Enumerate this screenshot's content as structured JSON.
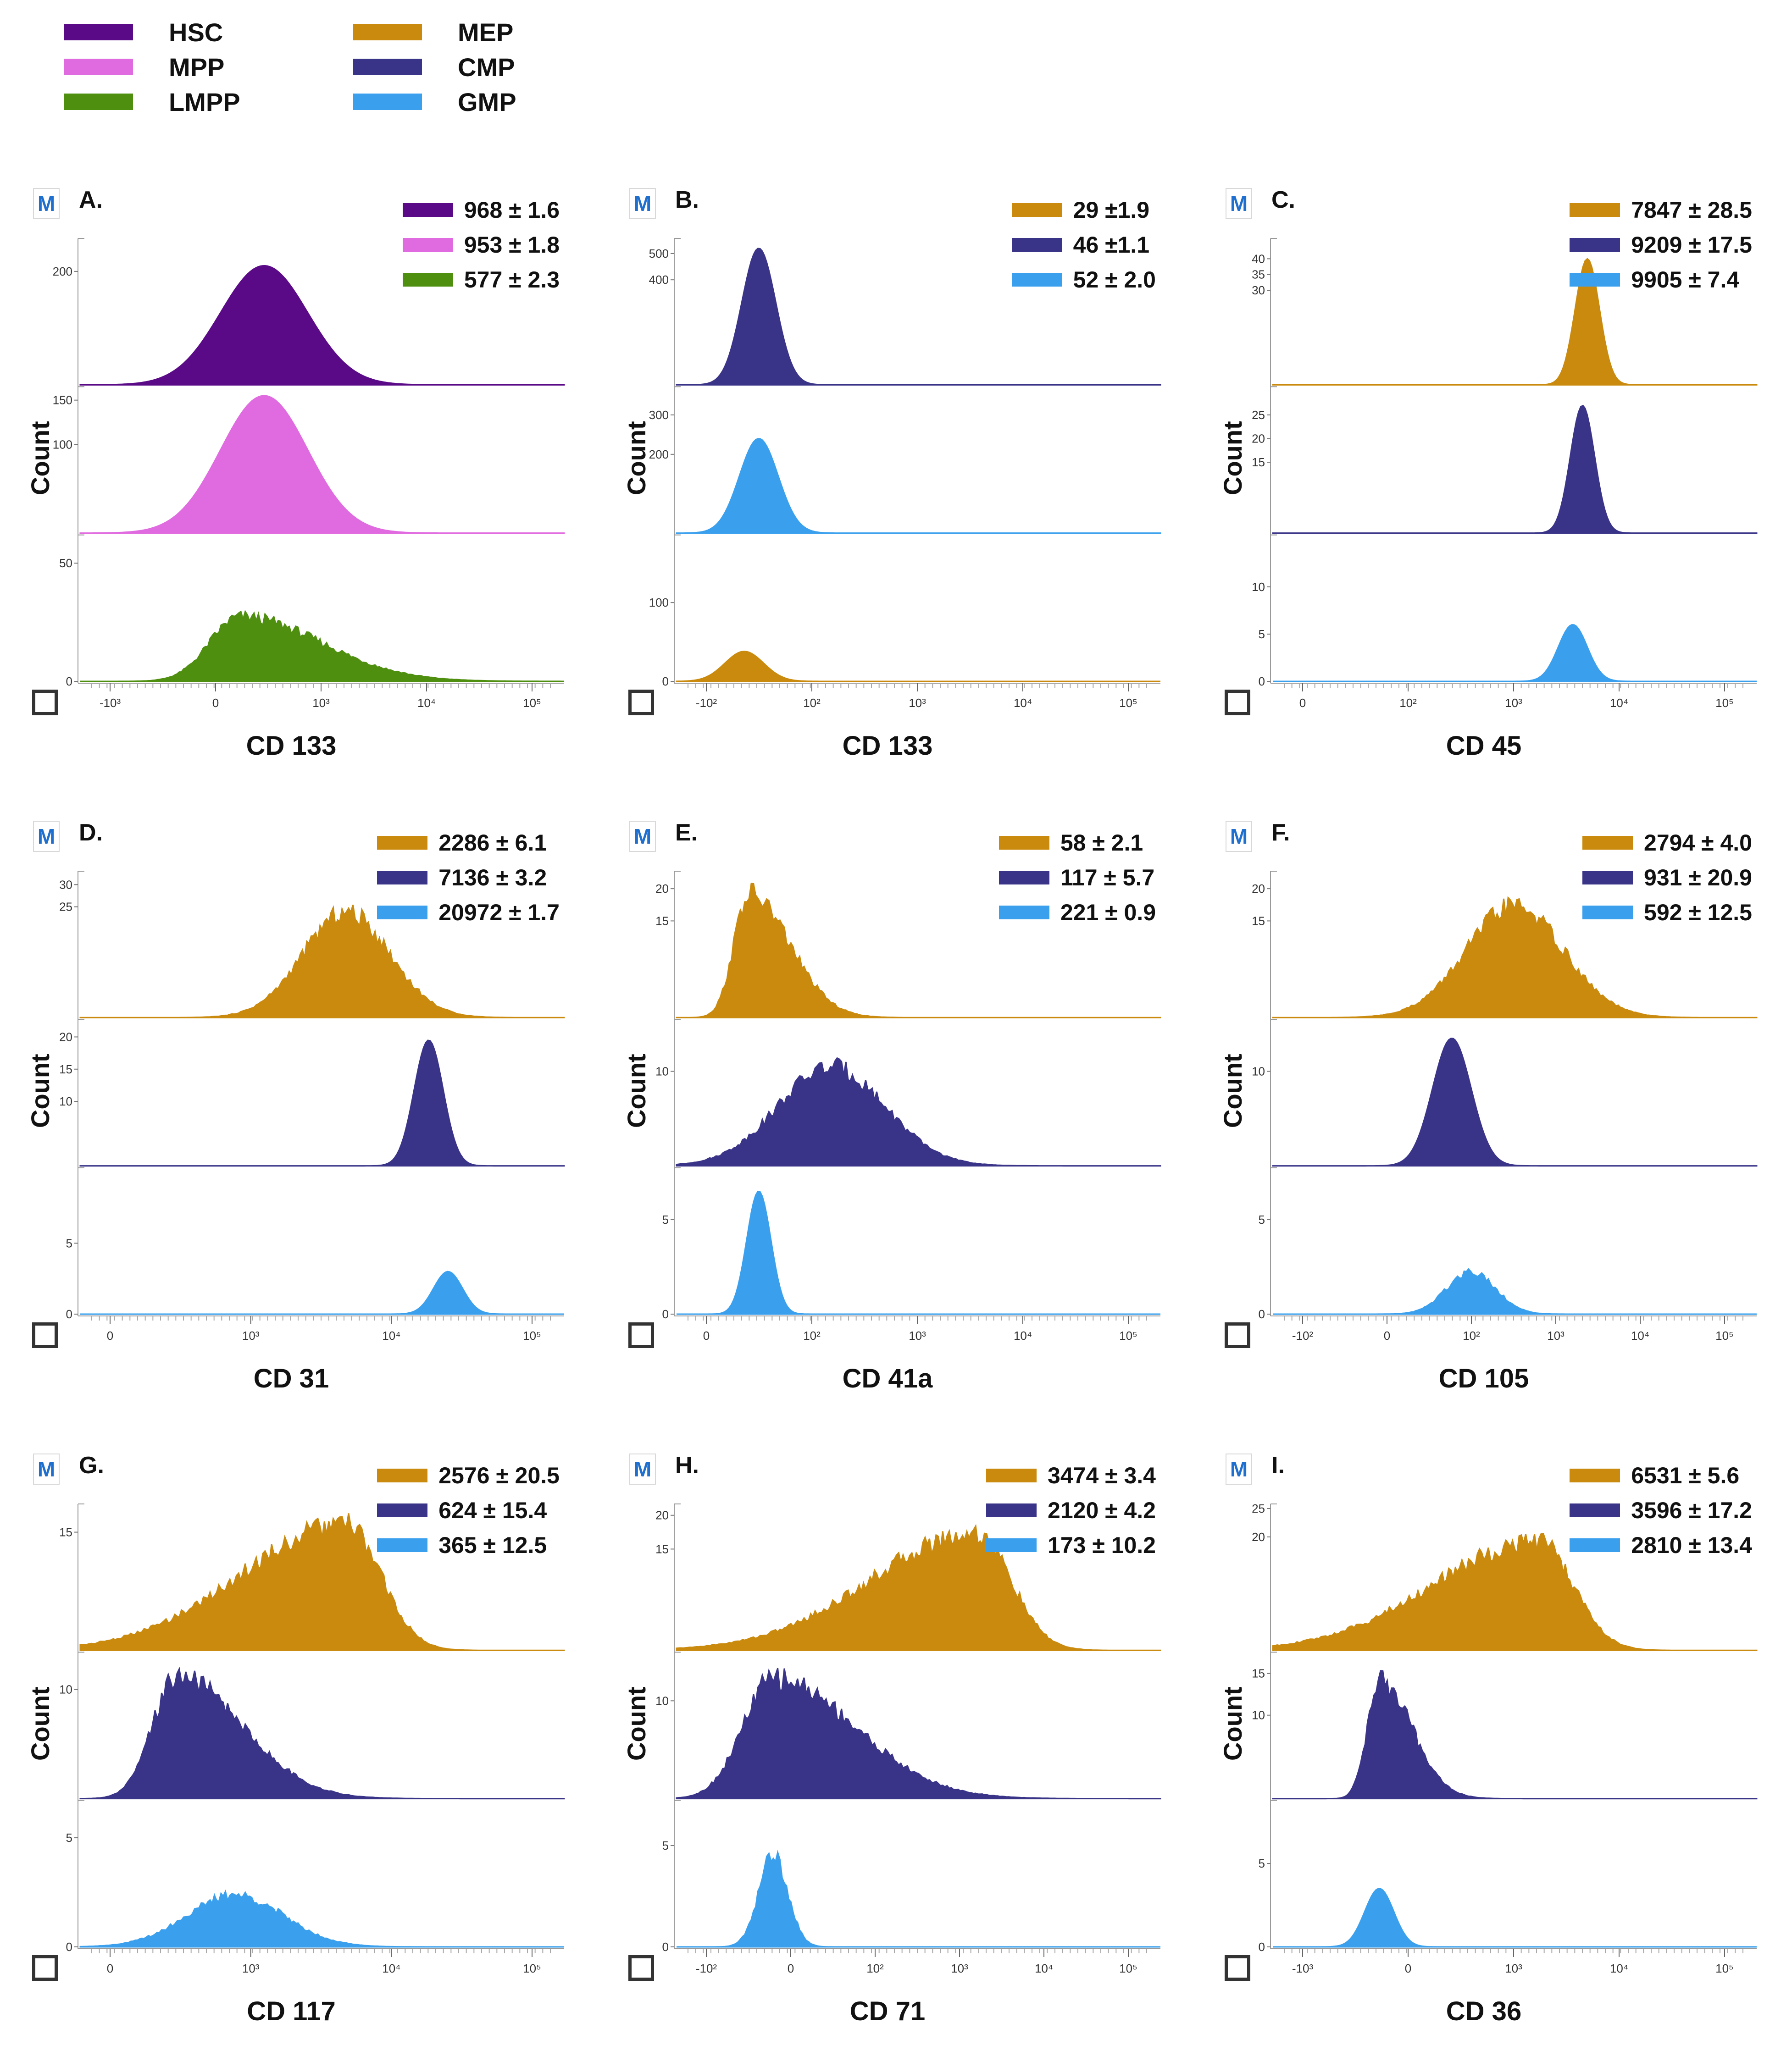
{
  "colors": {
    "HSC": "#5b0a87",
    "MPP": "#e06ae0",
    "LMPP": "#4f8f10",
    "MEP": "#c98a0e",
    "CMP": "#3a3488",
    "GMP": "#3aa0ee"
  },
  "legend": [
    {
      "key": "HSC",
      "label": "HSC"
    },
    {
      "key": "MPP",
      "label": "MPP"
    },
    {
      "key": "LMPP",
      "label": "LMPP"
    },
    {
      "key": "MEP",
      "label": "MEP"
    },
    {
      "key": "CMP",
      "label": "CMP"
    },
    {
      "key": "GMP",
      "label": "GMP"
    }
  ],
  "chart_data": [
    {
      "id": "A",
      "letter": "A.",
      "type": "area",
      "xlabel": "CD 133",
      "ylabel": "Count",
      "icon": "M",
      "x_ticks": [
        "-10³",
        "0",
        "10³",
        "10⁴",
        "10⁵"
      ],
      "stats": [
        {
          "key": "HSC",
          "text": "968 ± 1.6"
        },
        {
          "key": "MPP",
          "text": "953 ± 1.8"
        },
        {
          "key": "LMPP",
          "text": "577 ± 2.3"
        }
      ],
      "series": [
        {
          "key": "HSC",
          "ymax": 250,
          "y_ticks": [
            "200"
          ],
          "peak_center": 0.38,
          "peak_width": 0.09,
          "peak_height": 210,
          "shape": "smooth"
        },
        {
          "key": "MPP",
          "ymax": 160,
          "y_ticks": [
            "100",
            "150"
          ],
          "peak_center": 0.38,
          "peak_width": 0.09,
          "peak_height": 155,
          "shape": "smooth"
        },
        {
          "key": "LMPP",
          "ymax": 60,
          "y_ticks": [
            "0",
            "50"
          ],
          "peak_center": 0.33,
          "peak_width": 0.1,
          "peak_height": 30,
          "shape": "skew"
        }
      ]
    },
    {
      "id": "B",
      "letter": "B.",
      "type": "area",
      "xlabel": "CD 133",
      "ylabel": "Count",
      "icon": "M",
      "x_ticks": [
        "-10²",
        "10²",
        "10³",
        "10⁴",
        "10⁵"
      ],
      "stats": [
        {
          "key": "MEP",
          "text": "29 ±1.9"
        },
        {
          "key": "CMP",
          "text": "46 ±1.1"
        },
        {
          "key": "GMP",
          "text": "52 ± 2.0"
        }
      ],
      "series": [
        {
          "key": "CMP",
          "ymax": 540,
          "y_ticks": [
            "400",
            "500"
          ],
          "peak_center": 0.17,
          "peak_width": 0.035,
          "peak_height": 520,
          "shape": "smooth"
        },
        {
          "key": "GMP",
          "ymax": 360,
          "y_ticks": [
            "200",
            "300"
          ],
          "peak_center": 0.17,
          "peak_width": 0.04,
          "peak_height": 240,
          "shape": "smooth"
        },
        {
          "key": "MEP",
          "ymax": 180,
          "y_ticks": [
            "0",
            "100"
          ],
          "peak_center": 0.14,
          "peak_width": 0.04,
          "peak_height": 38,
          "shape": "smooth"
        }
      ]
    },
    {
      "id": "C",
      "letter": "C.",
      "type": "area",
      "xlabel": "CD 45",
      "ylabel": "Count",
      "icon": "M",
      "x_ticks": [
        "0",
        "10²",
        "10³",
        "10⁴",
        "10⁵"
      ],
      "stats": [
        {
          "key": "MEP",
          "text": "7847 ± 28.5"
        },
        {
          "key": "CMP",
          "text": "9209 ± 17.5"
        },
        {
          "key": "GMP",
          "text": "9905 ± 7.4"
        }
      ],
      "series": [
        {
          "key": "MEP",
          "ymax": 45,
          "y_ticks": [
            "30",
            "35",
            "40"
          ],
          "peak_center": 0.65,
          "peak_width": 0.025,
          "peak_height": 40,
          "shape": "smooth"
        },
        {
          "key": "CMP",
          "ymax": 30,
          "y_ticks": [
            "15",
            "20",
            "25"
          ],
          "peak_center": 0.64,
          "peak_width": 0.025,
          "peak_height": 27,
          "shape": "smooth"
        },
        {
          "key": "GMP",
          "ymax": 15,
          "y_ticks": [
            "0",
            "5",
            "10"
          ],
          "peak_center": 0.62,
          "peak_width": 0.03,
          "peak_height": 6,
          "shape": "smooth"
        }
      ]
    },
    {
      "id": "D",
      "letter": "D.",
      "type": "area",
      "xlabel": "CD 31",
      "ylabel": "Count",
      "icon": "M",
      "x_ticks": [
        "0",
        "10³",
        "10⁴",
        "10⁵"
      ],
      "stats": [
        {
          "key": "MEP",
          "text": "2286 ± 6.1"
        },
        {
          "key": "CMP",
          "text": "7136 ± 3.2"
        },
        {
          "key": "GMP",
          "text": "20972 ± 1.7"
        }
      ],
      "series": [
        {
          "key": "MEP",
          "ymax": 32,
          "y_ticks": [
            "25",
            "30"
          ],
          "peak_center": 0.55,
          "peak_width": 0.09,
          "peak_height": 26,
          "shape": "rough"
        },
        {
          "key": "CMP",
          "ymax": 22,
          "y_ticks": [
            "10",
            "15",
            "20"
          ],
          "peak_center": 0.72,
          "peak_width": 0.03,
          "peak_height": 19.5,
          "shape": "smooth"
        },
        {
          "key": "GMP",
          "ymax": 10,
          "y_ticks": [
            "0",
            "5"
          ],
          "peak_center": 0.76,
          "peak_width": 0.03,
          "peak_height": 3,
          "shape": "smooth"
        }
      ]
    },
    {
      "id": "E",
      "letter": "E.",
      "type": "area",
      "xlabel": "CD 41a",
      "ylabel": "Count",
      "icon": "M",
      "x_ticks": [
        "0",
        "10²",
        "10³",
        "10⁴",
        "10⁵"
      ],
      "stats": [
        {
          "key": "MEP",
          "text": "58 ± 2.1"
        },
        {
          "key": "CMP",
          "text": "117 ± 5.7"
        },
        {
          "key": "GMP",
          "text": "221 ± 0.9"
        }
      ],
      "series": [
        {
          "key": "MEP",
          "ymax": 22,
          "y_ticks": [
            "15",
            "20"
          ],
          "peak_center": 0.15,
          "peak_width": 0.05,
          "peak_height": 21,
          "shape": "skew"
        },
        {
          "key": "CMP",
          "ymax": 15,
          "y_ticks": [
            "10"
          ],
          "peak_center": 0.32,
          "peak_width": 0.11,
          "peak_height": 11.5,
          "shape": "rough"
        },
        {
          "key": "GMP",
          "ymax": 7.5,
          "y_ticks": [
            "0",
            "5"
          ],
          "peak_center": 0.17,
          "peak_width": 0.025,
          "peak_height": 6.5,
          "shape": "smooth"
        }
      ]
    },
    {
      "id": "F",
      "letter": "F.",
      "type": "area",
      "xlabel": "CD 105",
      "ylabel": "Count",
      "icon": "M",
      "x_ticks": [
        "-10²",
        "0",
        "10²",
        "10³",
        "10⁴",
        "10⁵"
      ],
      "stats": [
        {
          "key": "MEP",
          "text": "2794 ± 4.0"
        },
        {
          "key": "CMP",
          "text": "931 ± 20.9"
        },
        {
          "key": "GMP",
          "text": "592 ± 12.5"
        }
      ],
      "series": [
        {
          "key": "MEP",
          "ymax": 22,
          "y_ticks": [
            "15",
            "20"
          ],
          "peak_center": 0.5,
          "peak_width": 0.1,
          "peak_height": 19,
          "shape": "rough"
        },
        {
          "key": "CMP",
          "ymax": 15,
          "y_ticks": [
            "10"
          ],
          "peak_center": 0.37,
          "peak_width": 0.04,
          "peak_height": 13.5,
          "shape": "smooth"
        },
        {
          "key": "GMP",
          "ymax": 7.5,
          "y_ticks": [
            "0",
            "5"
          ],
          "peak_center": 0.41,
          "peak_width": 0.05,
          "peak_height": 2.5,
          "shape": "rough"
        }
      ]
    },
    {
      "id": "G",
      "letter": "G.",
      "type": "area",
      "xlabel": "CD 117",
      "ylabel": "Count",
      "icon": "M",
      "x_ticks": [
        "0",
        "10³",
        "10⁴",
        "10⁵"
      ],
      "stats": [
        {
          "key": "MEP",
          "text": "2576 ± 20.5"
        },
        {
          "key": "CMP",
          "text": "624 ± 15.4"
        },
        {
          "key": "GMP",
          "text": "365 ± 12.5"
        }
      ],
      "series": [
        {
          "key": "MEP",
          "ymax": 18,
          "y_ticks": [
            "15"
          ],
          "peak_center": 0.55,
          "peak_width": 0.12,
          "peak_height": 17.5,
          "shape": "skew-right"
        },
        {
          "key": "CMP",
          "ymax": 13,
          "y_ticks": [
            "10"
          ],
          "peak_center": 0.2,
          "peak_width": 0.08,
          "peak_height": 12.3,
          "shape": "skew"
        },
        {
          "key": "GMP",
          "ymax": 6.5,
          "y_ticks": [
            "0",
            "5"
          ],
          "peak_center": 0.32,
          "peak_width": 0.1,
          "peak_height": 2.6,
          "shape": "rough"
        }
      ]
    },
    {
      "id": "H",
      "letter": "H.",
      "type": "area",
      "xlabel": "CD 71",
      "ylabel": "Count",
      "icon": "M",
      "x_ticks": [
        "-10²",
        "0",
        "10²",
        "10³",
        "10⁴",
        "10⁵"
      ],
      "stats": [
        {
          "key": "MEP",
          "text": "3474 ± 3.4"
        },
        {
          "key": "CMP",
          "text": "2120 ± 4.2"
        },
        {
          "key": "GMP",
          "text": "173 ± 10.2"
        }
      ],
      "series": [
        {
          "key": "MEP",
          "ymax": 21,
          "y_ticks": [
            "15",
            "20"
          ],
          "peak_center": 0.62,
          "peak_width": 0.12,
          "peak_height": 19,
          "shape": "skew-right"
        },
        {
          "key": "CMP",
          "ymax": 14.5,
          "y_ticks": [
            "10"
          ],
          "peak_center": 0.2,
          "peak_width": 0.1,
          "peak_height": 13.5,
          "shape": "skew"
        },
        {
          "key": "GMP",
          "ymax": 7,
          "y_ticks": [
            "0",
            "5"
          ],
          "peak_center": 0.2,
          "peak_width": 0.03,
          "peak_height": 5,
          "shape": "rough"
        }
      ]
    },
    {
      "id": "I",
      "letter": "I.",
      "type": "area",
      "xlabel": "CD 36",
      "ylabel": "Count",
      "icon": "M",
      "x_ticks": [
        "-10³",
        "0",
        "10³",
        "10⁴",
        "10⁵"
      ],
      "stats": [
        {
          "key": "MEP",
          "text": "6531 ± 5.6"
        },
        {
          "key": "CMP",
          "text": "3596 ± 17.2"
        },
        {
          "key": "GMP",
          "text": "2810 ± 13.4"
        }
      ],
      "series": [
        {
          "key": "MEP",
          "ymax": 25,
          "y_ticks": [
            "20",
            "25"
          ],
          "peak_center": 0.55,
          "peak_width": 0.12,
          "peak_height": 21,
          "shape": "skew-right"
        },
        {
          "key": "CMP",
          "ymax": 17,
          "y_ticks": [
            "10",
            "15"
          ],
          "peak_center": 0.22,
          "peak_width": 0.04,
          "peak_height": 15.5,
          "shape": "skew"
        },
        {
          "key": "GMP",
          "ymax": 8.5,
          "y_ticks": [
            "0",
            "5"
          ],
          "peak_center": 0.22,
          "peak_width": 0.03,
          "peak_height": 3.5,
          "shape": "smooth"
        }
      ]
    }
  ]
}
